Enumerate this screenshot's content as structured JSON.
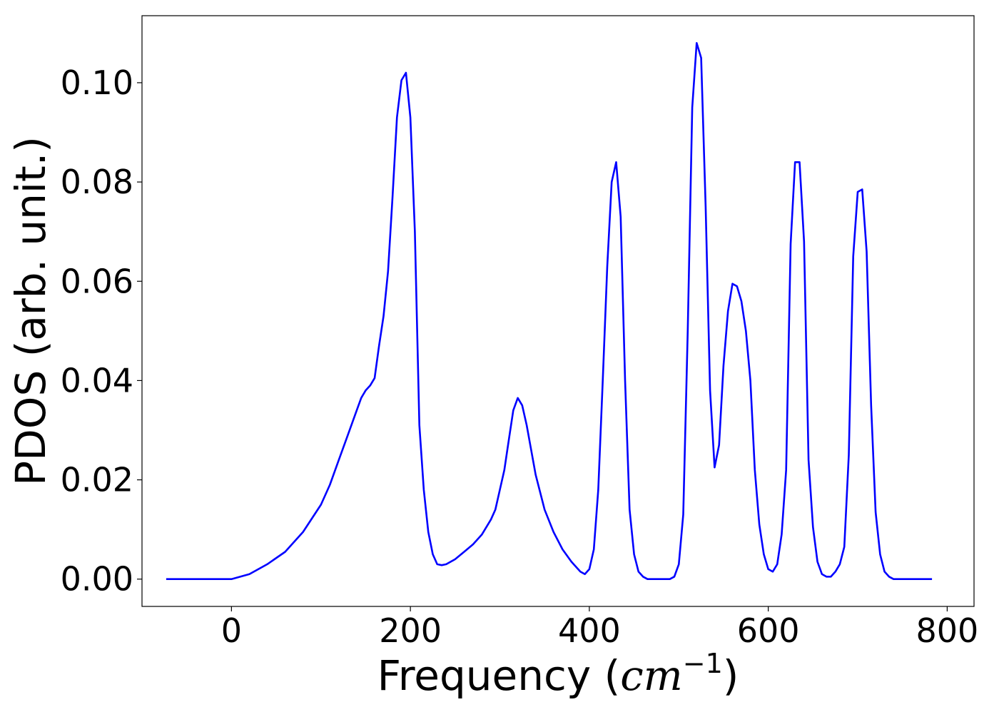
{
  "chart_data": {
    "type": "line",
    "title": "",
    "xlabel": {
      "text": "Frequency (",
      "math_base": "cm",
      "math_exp": "−1",
      "close": ")"
    },
    "ylabel": "PDOS (arb. unit.)",
    "xlim": [
      -100,
      830
    ],
    "ylim": [
      -0.0055,
      0.1135
    ],
    "xticks": [
      0,
      200,
      400,
      600,
      800
    ],
    "xtick_labels": [
      "0",
      "200",
      "400",
      "600",
      "800"
    ],
    "yticks": [
      0.0,
      0.02,
      0.04,
      0.06,
      0.08,
      0.1
    ],
    "ytick_labels": [
      "0.00",
      "0.02",
      "0.04",
      "0.06",
      "0.08",
      "0.10"
    ],
    "grid": false,
    "line_color": "#0000ff",
    "series": [
      {
        "x": [
          -73,
          -20,
          0,
          20,
          40,
          60,
          80,
          100,
          110,
          120,
          130,
          140,
          145,
          150,
          155,
          160,
          165,
          170,
          175,
          180,
          185,
          190,
          195,
          200,
          205,
          210,
          215,
          220,
          225,
          230,
          235,
          240,
          250,
          260,
          270,
          280,
          290,
          295,
          300,
          305,
          310,
          315,
          320,
          325,
          330,
          335,
          340,
          350,
          360,
          370,
          380,
          390,
          395,
          400,
          405,
          410,
          415,
          420,
          425,
          430,
          435,
          440,
          445,
          450,
          455,
          460,
          465,
          470,
          490,
          495,
          500,
          505,
          510,
          515,
          520,
          525,
          530,
          535,
          540,
          545,
          550,
          555,
          560,
          565,
          570,
          575,
          580,
          585,
          590,
          595,
          600,
          605,
          610,
          615,
          620,
          625,
          630,
          635,
          640,
          645,
          650,
          655,
          660,
          665,
          670,
          675,
          680,
          685,
          690,
          695,
          700,
          705,
          710,
          715,
          720,
          725,
          730,
          735,
          740,
          783
        ],
        "y": [
          0.0,
          0.0,
          0.0,
          0.001,
          0.003,
          0.0055,
          0.0095,
          0.015,
          0.019,
          0.024,
          0.029,
          0.034,
          0.0365,
          0.038,
          0.039,
          0.0405,
          0.047,
          0.053,
          0.062,
          0.077,
          0.093,
          0.1005,
          0.102,
          0.093,
          0.07,
          0.031,
          0.018,
          0.0095,
          0.005,
          0.003,
          0.0028,
          0.003,
          0.004,
          0.0055,
          0.007,
          0.009,
          0.012,
          0.014,
          0.018,
          0.022,
          0.028,
          0.034,
          0.0365,
          0.035,
          0.031,
          0.026,
          0.021,
          0.014,
          0.0095,
          0.006,
          0.0035,
          0.0015,
          0.001,
          0.002,
          0.006,
          0.018,
          0.04,
          0.063,
          0.08,
          0.084,
          0.073,
          0.04,
          0.014,
          0.005,
          0.0015,
          0.0005,
          0.0,
          0.0,
          0.0,
          0.0005,
          0.003,
          0.013,
          0.05,
          0.095,
          0.108,
          0.105,
          0.075,
          0.038,
          0.0225,
          0.027,
          0.043,
          0.054,
          0.0595,
          0.059,
          0.056,
          0.05,
          0.04,
          0.022,
          0.011,
          0.005,
          0.002,
          0.0015,
          0.003,
          0.009,
          0.022,
          0.0675,
          0.084,
          0.084,
          0.068,
          0.024,
          0.0105,
          0.0035,
          0.001,
          0.0005,
          0.0005,
          0.0015,
          0.003,
          0.0065,
          0.025,
          0.065,
          0.078,
          0.0785,
          0.066,
          0.035,
          0.0135,
          0.005,
          0.0015,
          0.0005,
          0.0,
          0.0
        ]
      }
    ]
  }
}
